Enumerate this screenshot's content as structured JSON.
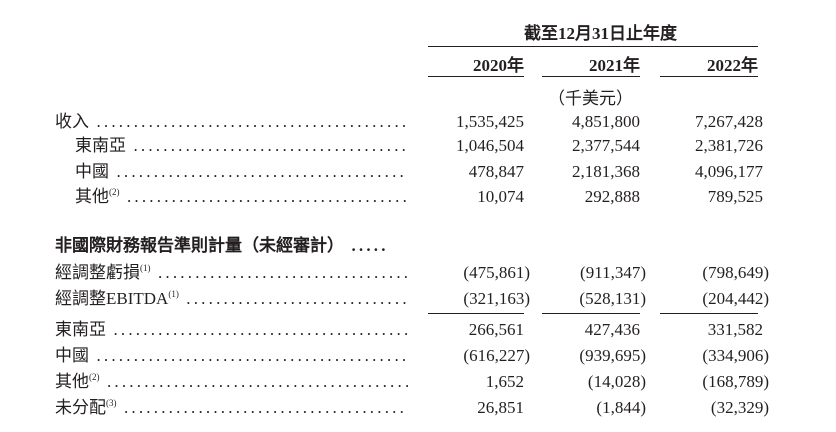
{
  "header": {
    "period": "截至12月31日止年度",
    "years": [
      "2020年",
      "2021年",
      "2022年"
    ],
    "unit": "（千美元）"
  },
  "rows": [
    {
      "label": "收入",
      "indent": false,
      "bold": false,
      "values": [
        "1,535,425",
        "4,851,800",
        "7,267,428"
      ]
    },
    {
      "label": "東南亞",
      "indent": true,
      "values": [
        "1,046,504",
        "2,377,544",
        "2,381,726"
      ]
    },
    {
      "label": "中國",
      "indent": true,
      "values": [
        "478,847",
        "2,181,368",
        "4,096,177"
      ]
    },
    {
      "label": "其他",
      "note": "(2)",
      "indent": true,
      "values": [
        "10,074",
        "292,888",
        "789,525"
      ]
    },
    {
      "label": "非國際財務報告準則計量（未經審計）",
      "indent": false,
      "bold": true,
      "values": []
    },
    {
      "label": "經調整虧損",
      "note": "(1)",
      "indent": false,
      "values": [
        "(475,861)",
        "(911,347)",
        "(798,649)"
      ]
    },
    {
      "label": "經調整EBITDA",
      "note": "(1)",
      "indent": false,
      "values": [
        "(321,163)",
        "(528,131)",
        "(204,442)"
      ]
    },
    {
      "label": "東南亞",
      "indent": false,
      "values": [
        "266,561",
        "427,436",
        "331,582"
      ]
    },
    {
      "label": "中國",
      "indent": false,
      "values": [
        "(616,227)",
        "(939,695)",
        "(334,906)"
      ]
    },
    {
      "label": "其他",
      "note": "(2)",
      "indent": false,
      "values": [
        "1,652",
        "(14,028)",
        "(168,789)"
      ]
    },
    {
      "label": "未分配",
      "note": "(3)",
      "indent": false,
      "values": [
        "26,851",
        "(1,844)",
        "(32,329)"
      ]
    }
  ]
}
